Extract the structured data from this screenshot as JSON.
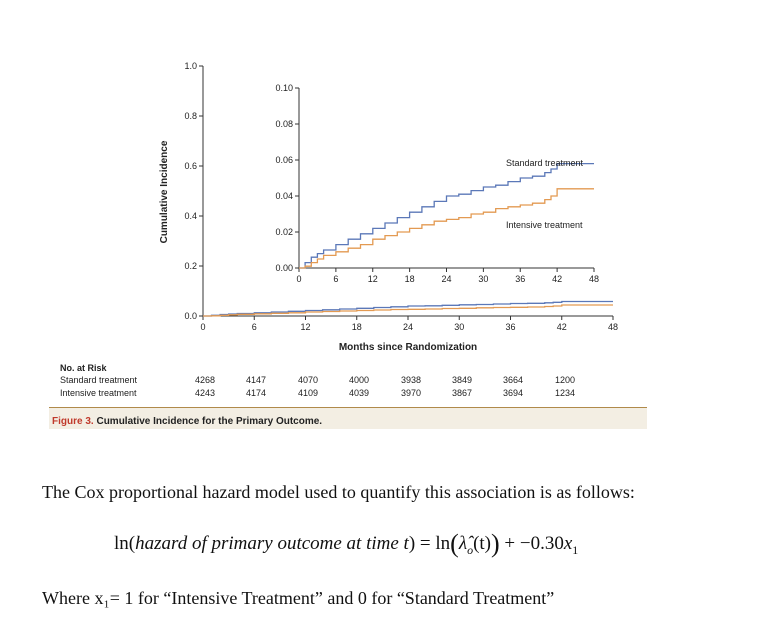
{
  "chart_data": {
    "type": "line",
    "title": "",
    "ylabel": "Cumulative Incidence",
    "xlabel": "Months since Randomization",
    "main": {
      "xlim": [
        0,
        48
      ],
      "ylim": [
        0,
        1.0
      ],
      "xticks": [
        0,
        6,
        12,
        18,
        24,
        30,
        36,
        42,
        48
      ],
      "yticks": [
        0.0,
        0.2,
        0.4,
        0.6,
        0.8,
        1.0
      ],
      "ytick_labels": [
        "0.0",
        "0.2",
        "0.4",
        "0.6",
        "0.8",
        "1.0"
      ]
    },
    "inset": {
      "xlim": [
        0,
        48
      ],
      "ylim": [
        0,
        0.1
      ],
      "xticks": [
        0,
        6,
        12,
        18,
        24,
        30,
        36,
        42,
        48
      ],
      "yticks": [
        0.0,
        0.02,
        0.04,
        0.06,
        0.08,
        0.1
      ],
      "ytick_labels": [
        "0.00",
        "0.02",
        "0.04",
        "0.06",
        "0.08",
        "0.10"
      ]
    },
    "series": [
      {
        "name": "Standard treatment",
        "color": "#5b78b8",
        "x": [
          0,
          1,
          2,
          3,
          4,
          6,
          8,
          10,
          12,
          14,
          16,
          18,
          20,
          22,
          24,
          26,
          28,
          30,
          32,
          34,
          36,
          38,
          40,
          41,
          42,
          44,
          46,
          48
        ],
        "y": [
          0,
          0.003,
          0.006,
          0.008,
          0.01,
          0.013,
          0.016,
          0.019,
          0.022,
          0.025,
          0.028,
          0.031,
          0.034,
          0.037,
          0.04,
          0.041,
          0.043,
          0.045,
          0.046,
          0.048,
          0.05,
          0.051,
          0.053,
          0.055,
          0.058,
          0.058,
          0.058,
          0.058
        ]
      },
      {
        "name": "Intensive treatment",
        "color": "#e39a52",
        "x": [
          0,
          1,
          2,
          3,
          4,
          6,
          8,
          10,
          12,
          14,
          16,
          18,
          20,
          22,
          24,
          26,
          28,
          30,
          32,
          34,
          36,
          38,
          40,
          41,
          42,
          44,
          46,
          48
        ],
        "y": [
          0,
          0.001,
          0.003,
          0.005,
          0.007,
          0.009,
          0.011,
          0.013,
          0.016,
          0.018,
          0.02,
          0.022,
          0.024,
          0.026,
          0.027,
          0.028,
          0.03,
          0.031,
          0.033,
          0.034,
          0.035,
          0.036,
          0.038,
          0.04,
          0.044,
          0.044,
          0.044,
          0.044
        ]
      }
    ],
    "annotations": [
      "Standard treatment",
      "Intensive treatment"
    ]
  },
  "risk_table": {
    "title": "No. at Risk",
    "rows": [
      {
        "label": "Standard treatment",
        "values": [
          "4268",
          "4147",
          "4070",
          "4000",
          "3938",
          "3849",
          "3664",
          "1200"
        ]
      },
      {
        "label": "Intensive treatment",
        "values": [
          "4243",
          "4174",
          "4109",
          "4039",
          "3970",
          "3867",
          "3694",
          "1234"
        ]
      }
    ]
  },
  "caption": {
    "fig_num": "Figure 3.",
    "text": " Cumulative Incidence for the Primary Outcome."
  },
  "text": {
    "intro": "The Cox proportional hazard model used to quantify this association is as follows:",
    "eq_ln1": "ln(",
    "eq_var": "hazard of primary outcome at time t",
    "eq_mid": ") = ln",
    "eq_lambda": "λ̂",
    "eq_lambda_sub": "o",
    "eq_t": "(t)",
    "eq_tail": " + −0.30",
    "eq_x": "x",
    "eq_x_sub": "1",
    "where": "Where x₁= 1 for “Intensive Treatment” and 0 for “Standard Treatment”"
  }
}
